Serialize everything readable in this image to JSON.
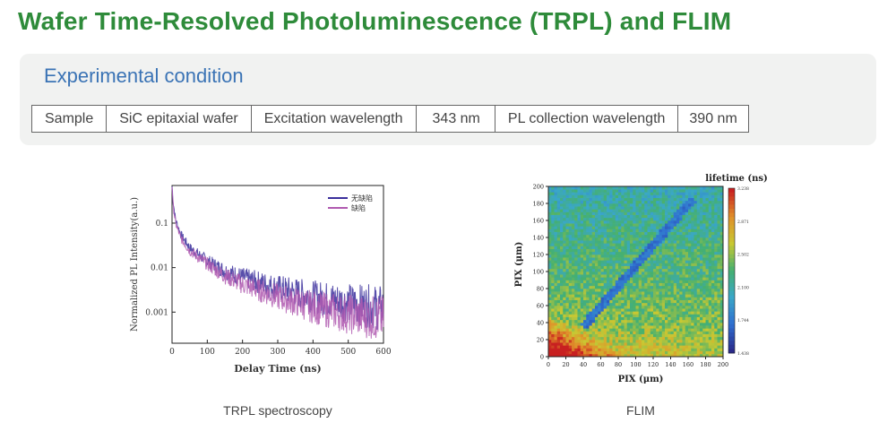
{
  "page": {
    "title": "Wafer Time-Resolved Photoluminescence (TRPL) and FLIM"
  },
  "condition": {
    "heading": "Experimental condition",
    "cells": [
      "Sample",
      "SiC epitaxial wafer",
      "Excitation wavelength",
      "343 nm",
      "PL collection wavelength",
      "390 nm"
    ]
  },
  "figures": {
    "trpl_caption": "TRPL spectroscopy",
    "flim_caption": "FLIM"
  },
  "chart_data": [
    {
      "type": "line",
      "title": "",
      "xlabel": "Delay Time (ns)",
      "ylabel": "Normalized PL Intensity(a.u.)",
      "x_ticks": [
        "0",
        "100",
        "200",
        "300",
        "400",
        "500",
        "600"
      ],
      "y_ticks": [
        "0.1",
        "0.01",
        "0.001"
      ],
      "xlim": [
        0,
        600
      ],
      "ylim": [
        0.0002,
        0.7
      ],
      "y_scale": "log",
      "legend_position": "top-right",
      "series": [
        {
          "name": "无缺陷",
          "color": "#3b2f9c",
          "x": [
            0,
            3,
            10,
            25,
            50,
            100,
            150,
            200,
            300,
            400,
            500,
            600
          ],
          "values": [
            0.7,
            0.3,
            0.12,
            0.055,
            0.028,
            0.014,
            0.0085,
            0.006,
            0.0035,
            0.0022,
            0.0016,
            0.0012
          ]
        },
        {
          "name": "缺陷",
          "color": "#b05ab0",
          "x": [
            0,
            3,
            10,
            25,
            50,
            100,
            150,
            200,
            300,
            400,
            500,
            600
          ],
          "values": [
            0.7,
            0.25,
            0.1,
            0.045,
            0.024,
            0.012,
            0.0065,
            0.0042,
            0.0022,
            0.0013,
            0.0009,
            0.0007
          ]
        }
      ]
    },
    {
      "type": "heatmap",
      "title": "lifetime (ns)",
      "xlabel": "PIX (μm)",
      "ylabel": "PIX (μm)",
      "x_ticks": [
        "0",
        "20",
        "40",
        "60",
        "80",
        "100",
        "120",
        "140",
        "160",
        "180",
        "200"
      ],
      "y_ticks": [
        "0",
        "20",
        "40",
        "60",
        "80",
        "100",
        "120",
        "140",
        "160",
        "180",
        "200"
      ],
      "xlim": [
        0,
        200
      ],
      "ylim": [
        0,
        200
      ],
      "colorbar_ticks": [
        "1.438",
        "1.744",
        "2.100",
        "2.502",
        "2.871",
        "3.238"
      ],
      "color_scale": [
        "#2a2a8a",
        "#2f6fd0",
        "#3aa7c8",
        "#45b070",
        "#c8c832",
        "#e0902a",
        "#c82020"
      ],
      "features": {
        "defect_line": {
          "from": [
            40,
            35
          ],
          "to": [
            165,
            185
          ],
          "lifetime": "low"
        },
        "hot_region": "bottom-left (high lifetime)"
      }
    }
  ]
}
